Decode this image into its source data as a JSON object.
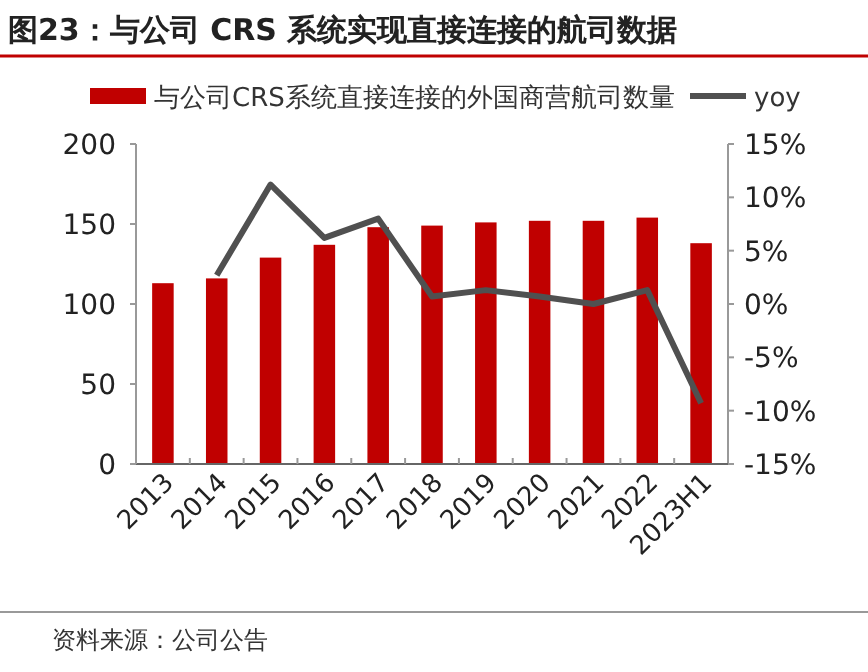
{
  "chart_data": {
    "type": "bar",
    "title": "图23：与公司 CRS 系统实现直接连接的航司数据",
    "categories": [
      "2013",
      "2014",
      "2015",
      "2016",
      "2017",
      "2018",
      "2019",
      "2020",
      "2021",
      "2022",
      "2023H1"
    ],
    "series": [
      {
        "name": "与公司CRS系统直接连接的外国商营航司数量",
        "color": "#c00000",
        "values": [
          113,
          116,
          129,
          137,
          148,
          149,
          151,
          152,
          152,
          154,
          138
        ]
      },
      {
        "name": "yoy",
        "type": "line",
        "axis": "y2",
        "color": "#505050",
        "values": [
          null,
          2.7,
          11.2,
          6.2,
          8.0,
          0.7,
          1.3,
          0.7,
          0.0,
          1.3,
          -9.3
        ]
      }
    ],
    "ylim": [
      0,
      200
    ],
    "yticks": [
      0,
      50,
      100,
      150,
      200
    ],
    "y2lim": [
      -15,
      15
    ],
    "y2ticks": [
      {
        "value": -15,
        "label": "-15%"
      },
      {
        "value": -10,
        "label": "-10%"
      },
      {
        "value": -5,
        "label": "-5%"
      },
      {
        "value": 0,
        "label": "0%"
      },
      {
        "value": 5,
        "label": "5%"
      },
      {
        "value": 10,
        "label": "10%"
      },
      {
        "value": 15,
        "label": "15%"
      }
    ],
    "legend": "top",
    "grid": false,
    "marker": "none",
    "line_style": "solid",
    "annotations": [
      "资料来源：公司公告"
    ]
  }
}
